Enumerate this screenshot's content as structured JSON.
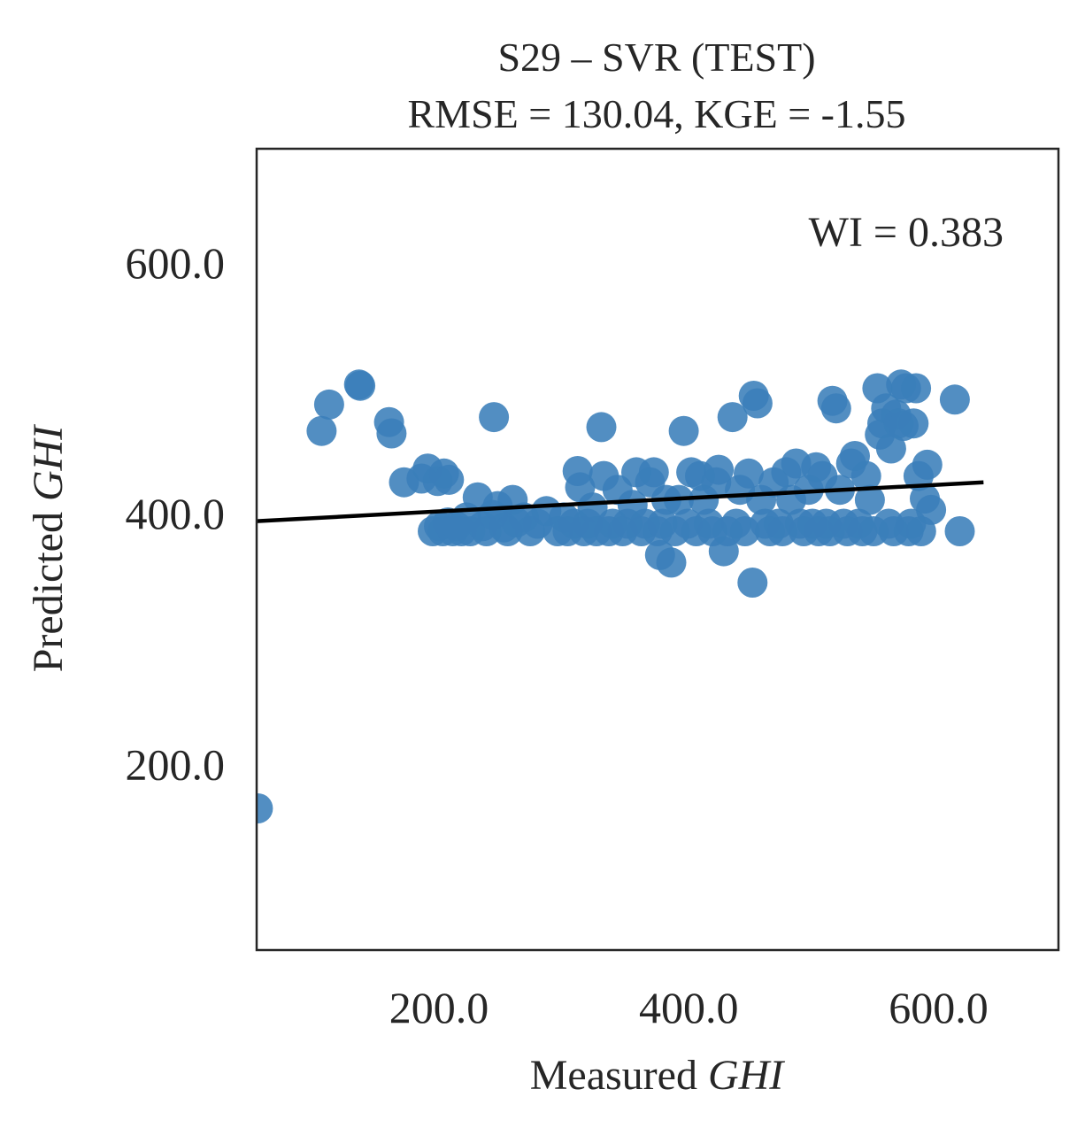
{
  "chart_data": {
    "type": "scatter",
    "title": "S29 – SVR (TEST)",
    "subtitle": "RMSE = 130.04, KGE = -1.55",
    "xlabel_prefix": "Measured ",
    "xlabel_italic": "GHI",
    "ylabel_prefix": "Predicted ",
    "ylabel_italic": "GHI",
    "annotation": "WI = 0.383",
    "xlim": [
      54,
      696
    ],
    "ylim": [
      52,
      691
    ],
    "xticks": [
      200,
      400,
      600
    ],
    "yticks": [
      200,
      400,
      600
    ],
    "xtick_labels": [
      "200.0",
      "400.0",
      "600.0"
    ],
    "ytick_labels": [
      "200.0",
      "400.0",
      "600.0"
    ],
    "grid": false,
    "point_color": "#3a7eb9",
    "line_color": "#000000",
    "regression_line": {
      "x": [
        54,
        636
      ],
      "y": [
        394,
        425
      ]
    },
    "points": [
      [
        55,
        165
      ],
      [
        106,
        466
      ],
      [
        112,
        487
      ],
      [
        136,
        503
      ],
      [
        137,
        502
      ],
      [
        160,
        473
      ],
      [
        162,
        464
      ],
      [
        172,
        425
      ],
      [
        186,
        428
      ],
      [
        191,
        436
      ],
      [
        199,
        426
      ],
      [
        204,
        432
      ],
      [
        208,
        427
      ],
      [
        195,
        386
      ],
      [
        200,
        390
      ],
      [
        203,
        386
      ],
      [
        207,
        393
      ],
      [
        211,
        386
      ],
      [
        214,
        390
      ],
      [
        218,
        386
      ],
      [
        222,
        397
      ],
      [
        225,
        386
      ],
      [
        231,
        413
      ],
      [
        235,
        390
      ],
      [
        238,
        386
      ],
      [
        244,
        477
      ],
      [
        243,
        399
      ],
      [
        247,
        406
      ],
      [
        252,
        389
      ],
      [
        255,
        386
      ],
      [
        259,
        411
      ],
      [
        262,
        393
      ],
      [
        268,
        397
      ],
      [
        273,
        386
      ],
      [
        279,
        392
      ],
      [
        286,
        402
      ],
      [
        295,
        386
      ],
      [
        300,
        397
      ],
      [
        303,
        386
      ],
      [
        308,
        392
      ],
      [
        311,
        434
      ],
      [
        313,
        421
      ],
      [
        316,
        386
      ],
      [
        319,
        392
      ],
      [
        323,
        405
      ],
      [
        326,
        386
      ],
      [
        330,
        469
      ],
      [
        332,
        430
      ],
      [
        336,
        386
      ],
      [
        339,
        392
      ],
      [
        343,
        419
      ],
      [
        347,
        386
      ],
      [
        351,
        392
      ],
      [
        355,
        407
      ],
      [
        358,
        433
      ],
      [
        362,
        386
      ],
      [
        365,
        392
      ],
      [
        369,
        425
      ],
      [
        372,
        433
      ],
      [
        375,
        386
      ],
      [
        377,
        367
      ],
      [
        379,
        392
      ],
      [
        382,
        411
      ],
      [
        386,
        361
      ],
      [
        389,
        386
      ],
      [
        392,
        411
      ],
      [
        396,
        466
      ],
      [
        399,
        392
      ],
      [
        402,
        433
      ],
      [
        406,
        386
      ],
      [
        409,
        430
      ],
      [
        412,
        411
      ],
      [
        416,
        392
      ],
      [
        419,
        386
      ],
      [
        422,
        425
      ],
      [
        424,
        435
      ],
      [
        428,
        370
      ],
      [
        431,
        386
      ],
      [
        435,
        477
      ],
      [
        438,
        392
      ],
      [
        441,
        419
      ],
      [
        445,
        386
      ],
      [
        448,
        432
      ],
      [
        451,
        345
      ],
      [
        452,
        494
      ],
      [
        455,
        488
      ],
      [
        458,
        411
      ],
      [
        461,
        392
      ],
      [
        465,
        386
      ],
      [
        468,
        425
      ],
      [
        472,
        392
      ],
      [
        475,
        386
      ],
      [
        478,
        433
      ],
      [
        482,
        411
      ],
      [
        486,
        440
      ],
      [
        489,
        392
      ],
      [
        492,
        386
      ],
      [
        496,
        419
      ],
      [
        499,
        392
      ],
      [
        502,
        437
      ],
      [
        504,
        386
      ],
      [
        507,
        430
      ],
      [
        510,
        392
      ],
      [
        513,
        386
      ],
      [
        515,
        490
      ],
      [
        518,
        484
      ],
      [
        521,
        419
      ],
      [
        524,
        392
      ],
      [
        527,
        386
      ],
      [
        530,
        440
      ],
      [
        533,
        446
      ],
      [
        536,
        392
      ],
      [
        539,
        386
      ],
      [
        542,
        430
      ],
      [
        545,
        411
      ],
      [
        548,
        386
      ],
      [
        551,
        500
      ],
      [
        553,
        463
      ],
      [
        555,
        472
      ],
      [
        558,
        484
      ],
      [
        560,
        392
      ],
      [
        562,
        452
      ],
      [
        564,
        386
      ],
      [
        566,
        479
      ],
      [
        568,
        472
      ],
      [
        570,
        503
      ],
      [
        572,
        470
      ],
      [
        574,
        500
      ],
      [
        576,
        386
      ],
      [
        578,
        392
      ],
      [
        580,
        472
      ],
      [
        582,
        500
      ],
      [
        584,
        430
      ],
      [
        586,
        386
      ],
      [
        589,
        412
      ],
      [
        591,
        439
      ],
      [
        594,
        403
      ],
      [
        613,
        491
      ],
      [
        617,
        386
      ]
    ]
  }
}
